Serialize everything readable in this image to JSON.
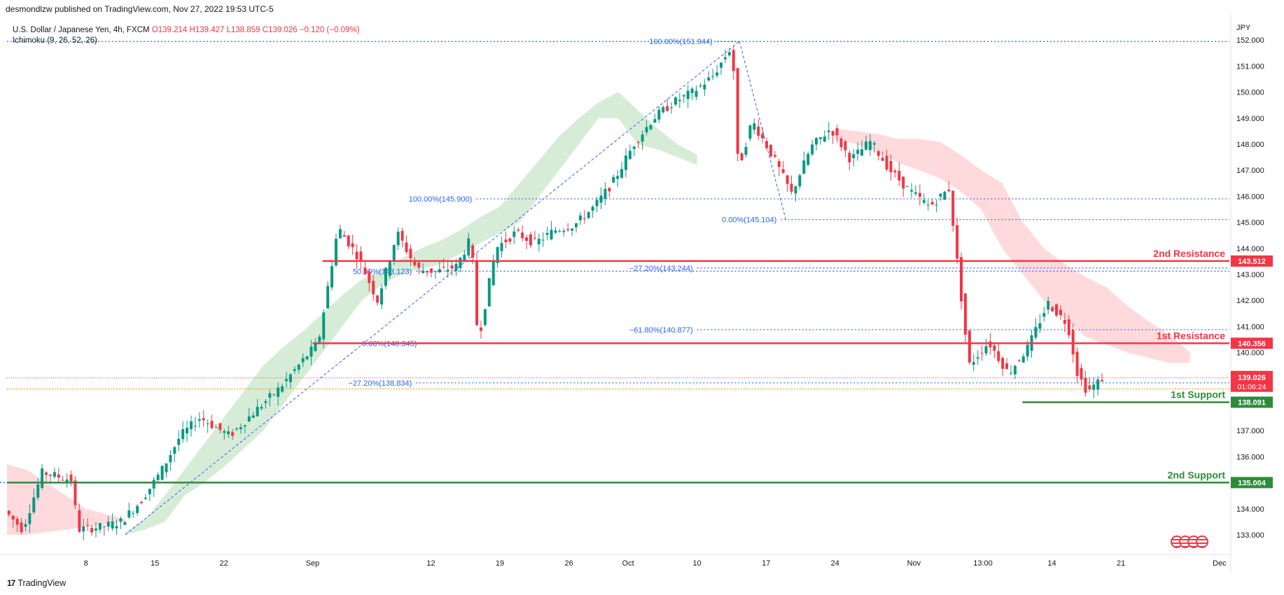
{
  "header": {
    "publisher": "desmondlzw published on TradingView.com, Nov 27, 2022 19:53 UTC-5"
  },
  "legend": {
    "symbol": "U.S. Dollar / Japanese Yen, 4h, FXCM",
    "open": "O139.214",
    "high": "H139.427",
    "low": "L138.859",
    "close": "C139.026",
    "change": "−0.120 (−0.09%)",
    "indicator": "Ichimoku (9, 26, 52, 26)"
  },
  "axis": {
    "currency": "JPY"
  },
  "brand": {
    "logo": "17",
    "name": "TradingView"
  },
  "colors": {
    "resistance": "#f23645",
    "support": "#2e8b3a",
    "fib": "#2962ff",
    "bull_candle": "#089981",
    "bear_candle": "#f23645",
    "cloud_bull": "#c8e6c9",
    "cloud_bear": "#ffcdd2"
  },
  "chart_data": {
    "type": "candlestick",
    "ylim": [
      132.3,
      152.3
    ],
    "x_ticks": [
      {
        "label": "8",
        "x": 8
      },
      {
        "label": "15",
        "x": 15
      },
      {
        "label": "22",
        "x": 22
      },
      {
        "label": "Sep",
        "x": 31
      },
      {
        "label": "12",
        "x": 43
      },
      {
        "label": "19",
        "x": 50
      },
      {
        "label": "26",
        "x": 57
      },
      {
        "label": "Oct",
        "x": 63
      },
      {
        "label": "10",
        "x": 70
      },
      {
        "label": "17",
        "x": 77
      },
      {
        "label": "24",
        "x": 84
      },
      {
        "label": "Nov",
        "x": 92
      },
      {
        "label": "13:00",
        "x": 99
      },
      {
        "label": "14",
        "x": 106
      },
      {
        "label": "21",
        "x": 113
      },
      {
        "label": "Dec",
        "x": 123
      }
    ],
    "y_ticks": [
      "133.000",
      "134.000",
      "135.000",
      "136.000",
      "137.000",
      "138.000",
      "139.000",
      "140.000",
      "141.000",
      "142.000",
      "143.000",
      "144.000",
      "145.000",
      "146.000",
      "147.000",
      "148.000",
      "149.000",
      "150.000",
      "151.000",
      "152.000"
    ],
    "price_path": [
      {
        "x": 0,
        "y": 134.0
      },
      {
        "x": 2,
        "y": 133.2
      },
      {
        "x": 4,
        "y": 135.4
      },
      {
        "x": 7,
        "y": 135.1
      },
      {
        "x": 7.6,
        "y": 133.2
      },
      {
        "x": 10,
        "y": 133.3
      },
      {
        "x": 12,
        "y": 133.5
      },
      {
        "x": 14,
        "y": 134.3
      },
      {
        "x": 16,
        "y": 135.4
      },
      {
        "x": 18,
        "y": 136.8
      },
      {
        "x": 20,
        "y": 137.5
      },
      {
        "x": 23,
        "y": 136.8
      },
      {
        "x": 26,
        "y": 137.9
      },
      {
        "x": 28,
        "y": 138.6
      },
      {
        "x": 30,
        "y": 139.5
      },
      {
        "x": 32,
        "y": 140.4
      },
      {
        "x": 34,
        "y": 144.8
      },
      {
        "x": 36,
        "y": 143.7
      },
      {
        "x": 38,
        "y": 142.0
      },
      {
        "x": 40,
        "y": 144.6
      },
      {
        "x": 42,
        "y": 143.2
      },
      {
        "x": 44,
        "y": 143.1
      },
      {
        "x": 46,
        "y": 143.3
      },
      {
        "x": 47.5,
        "y": 144.4
      },
      {
        "x": 48.2,
        "y": 140.4
      },
      {
        "x": 50,
        "y": 144.0
      },
      {
        "x": 52,
        "y": 144.6
      },
      {
        "x": 54,
        "y": 144.2
      },
      {
        "x": 56,
        "y": 144.7
      },
      {
        "x": 58,
        "y": 144.9
      },
      {
        "x": 60,
        "y": 145.6
      },
      {
        "x": 62,
        "y": 146.6
      },
      {
        "x": 64,
        "y": 148.0
      },
      {
        "x": 66,
        "y": 149.0
      },
      {
        "x": 68,
        "y": 149.6
      },
      {
        "x": 70,
        "y": 150.0
      },
      {
        "x": 72,
        "y": 150.6
      },
      {
        "x": 74,
        "y": 151.8
      },
      {
        "x": 74.6,
        "y": 147.0
      },
      {
        "x": 76,
        "y": 148.9
      },
      {
        "x": 78,
        "y": 147.6
      },
      {
        "x": 80,
        "y": 146.1
      },
      {
        "x": 82,
        "y": 147.9
      },
      {
        "x": 84,
        "y": 148.6
      },
      {
        "x": 86,
        "y": 147.4
      },
      {
        "x": 88,
        "y": 148.1
      },
      {
        "x": 90,
        "y": 147.0
      },
      {
        "x": 92,
        "y": 146.2
      },
      {
        "x": 94,
        "y": 145.6
      },
      {
        "x": 96,
        "y": 146.3
      },
      {
        "x": 96.8,
        "y": 143.5
      },
      {
        "x": 98,
        "y": 139.5
      },
      {
        "x": 100,
        "y": 140.4
      },
      {
        "x": 102,
        "y": 139.2
      },
      {
        "x": 104,
        "y": 140.2
      },
      {
        "x": 106,
        "y": 141.9
      },
      {
        "x": 108,
        "y": 141.1
      },
      {
        "x": 109,
        "y": 139.2
      },
      {
        "x": 110,
        "y": 138.5
      },
      {
        "x": 111.5,
        "y": 139.0
      }
    ],
    "cloud_bull": [
      {
        "x0": 12,
        "x1": 32,
        "lower": [
          133.0,
          133.2,
          133.5,
          134.5,
          135.0,
          135.6,
          136.3,
          137.0,
          138.0,
          139.0,
          140.0
        ],
        "upper": [
          133.1,
          133.6,
          134.5,
          135.5,
          136.5,
          137.5,
          138.5,
          139.5,
          140.2,
          140.8,
          141.5
        ]
      },
      {
        "x0": 32,
        "x1": 70,
        "lower": [
          140.0,
          141.0,
          142.0,
          142.6,
          143.0,
          143.2,
          143.4,
          143.8,
          144.2,
          144.6,
          145.0,
          146.0,
          147.0,
          148.0,
          149.0,
          149.0,
          148.0,
          147.8,
          147.5,
          147.2
        ],
        "upper": [
          141.5,
          142.2,
          142.8,
          143.2,
          143.6,
          144.0,
          144.3,
          144.7,
          145.2,
          145.6,
          146.5,
          147.4,
          148.3,
          149.0,
          149.6,
          150.0,
          149.3,
          148.6,
          148.0,
          147.6
        ]
      }
    ],
    "cloud_bear": [
      {
        "x0": 0,
        "x1": 12,
        "lower": [
          133.0,
          133.0,
          133.1,
          133.2,
          133.3,
          133.4,
          133.5
        ],
        "upper": [
          135.7,
          135.5,
          135.0,
          134.5,
          134.0,
          133.8,
          133.6
        ]
      },
      {
        "x0": 84,
        "x1": 120,
        "lower": [
          148.2,
          148.0,
          147.7,
          147.3,
          147.0,
          146.7,
          146.2,
          145.5,
          144.0,
          143.0,
          142.0,
          141.3,
          140.6,
          140.3,
          140.0,
          139.8,
          139.6,
          139.6
        ],
        "upper": [
          148.6,
          148.5,
          148.4,
          148.2,
          148.2,
          148.1,
          147.6,
          147.0,
          146.5,
          145.0,
          144.0,
          143.4,
          142.9,
          142.5,
          141.8,
          141.2,
          140.7,
          140.0
        ]
      }
    ],
    "fib_drawings": [
      {
        "label": "100.00%(151.944)",
        "y": 151.944,
        "x0": 72,
        "x1": 74.5,
        "anchor": "left"
      },
      {
        "label": "100.00%(145.900)",
        "y": 145.9,
        "x0": 47.6,
        "x1": 124,
        "anchor": "left"
      },
      {
        "label": "0.00%(145.104)",
        "y": 145.104,
        "x0": 78.5,
        "x1": 124,
        "anchor": "left"
      },
      {
        "label": "50.00%(143.123)",
        "y": 143.123,
        "x0": 41.5,
        "x1": 124,
        "anchor": "left"
      },
      {
        "label": "−27.20%(143.244)",
        "y": 143.244,
        "x0": 70,
        "x1": 124,
        "anchor": "left"
      },
      {
        "label": "−61.80%(140.877)",
        "y": 140.877,
        "x0": 70,
        "x1": 124,
        "anchor": "left"
      },
      {
        "label": "0.00%(140.345)",
        "y": 140.345,
        "x0": 42,
        "x1": 47.6,
        "anchor": "left"
      },
      {
        "label": "−27.20%(138.834)",
        "y": 138.834,
        "x0": 41.5,
        "x1": 124,
        "anchor": "left"
      }
    ],
    "fib_top_line": {
      "y": 151.944
    },
    "fib_left_line": {
      "y": 135.004
    },
    "current_price_line": {
      "y": 139.026
    },
    "orange_line": {
      "y": 138.6
    },
    "levels": [
      {
        "name": "2nd Resistance",
        "value": "143.512",
        "y": 143.512,
        "kind": "resistance",
        "x0": 32
      },
      {
        "name": "1st Resistance",
        "value": "140.356",
        "y": 140.356,
        "kind": "resistance",
        "x0": 31
      },
      {
        "name": "1st Support",
        "value": "138.091",
        "y": 138.091,
        "kind": "support",
        "x0": 103
      },
      {
        "name": "2nd Support",
        "value": "135.004",
        "y": 135.004,
        "kind": "support",
        "x0": 0
      }
    ],
    "current_price": {
      "value": "139.026",
      "countdown": "01:06:24"
    }
  }
}
